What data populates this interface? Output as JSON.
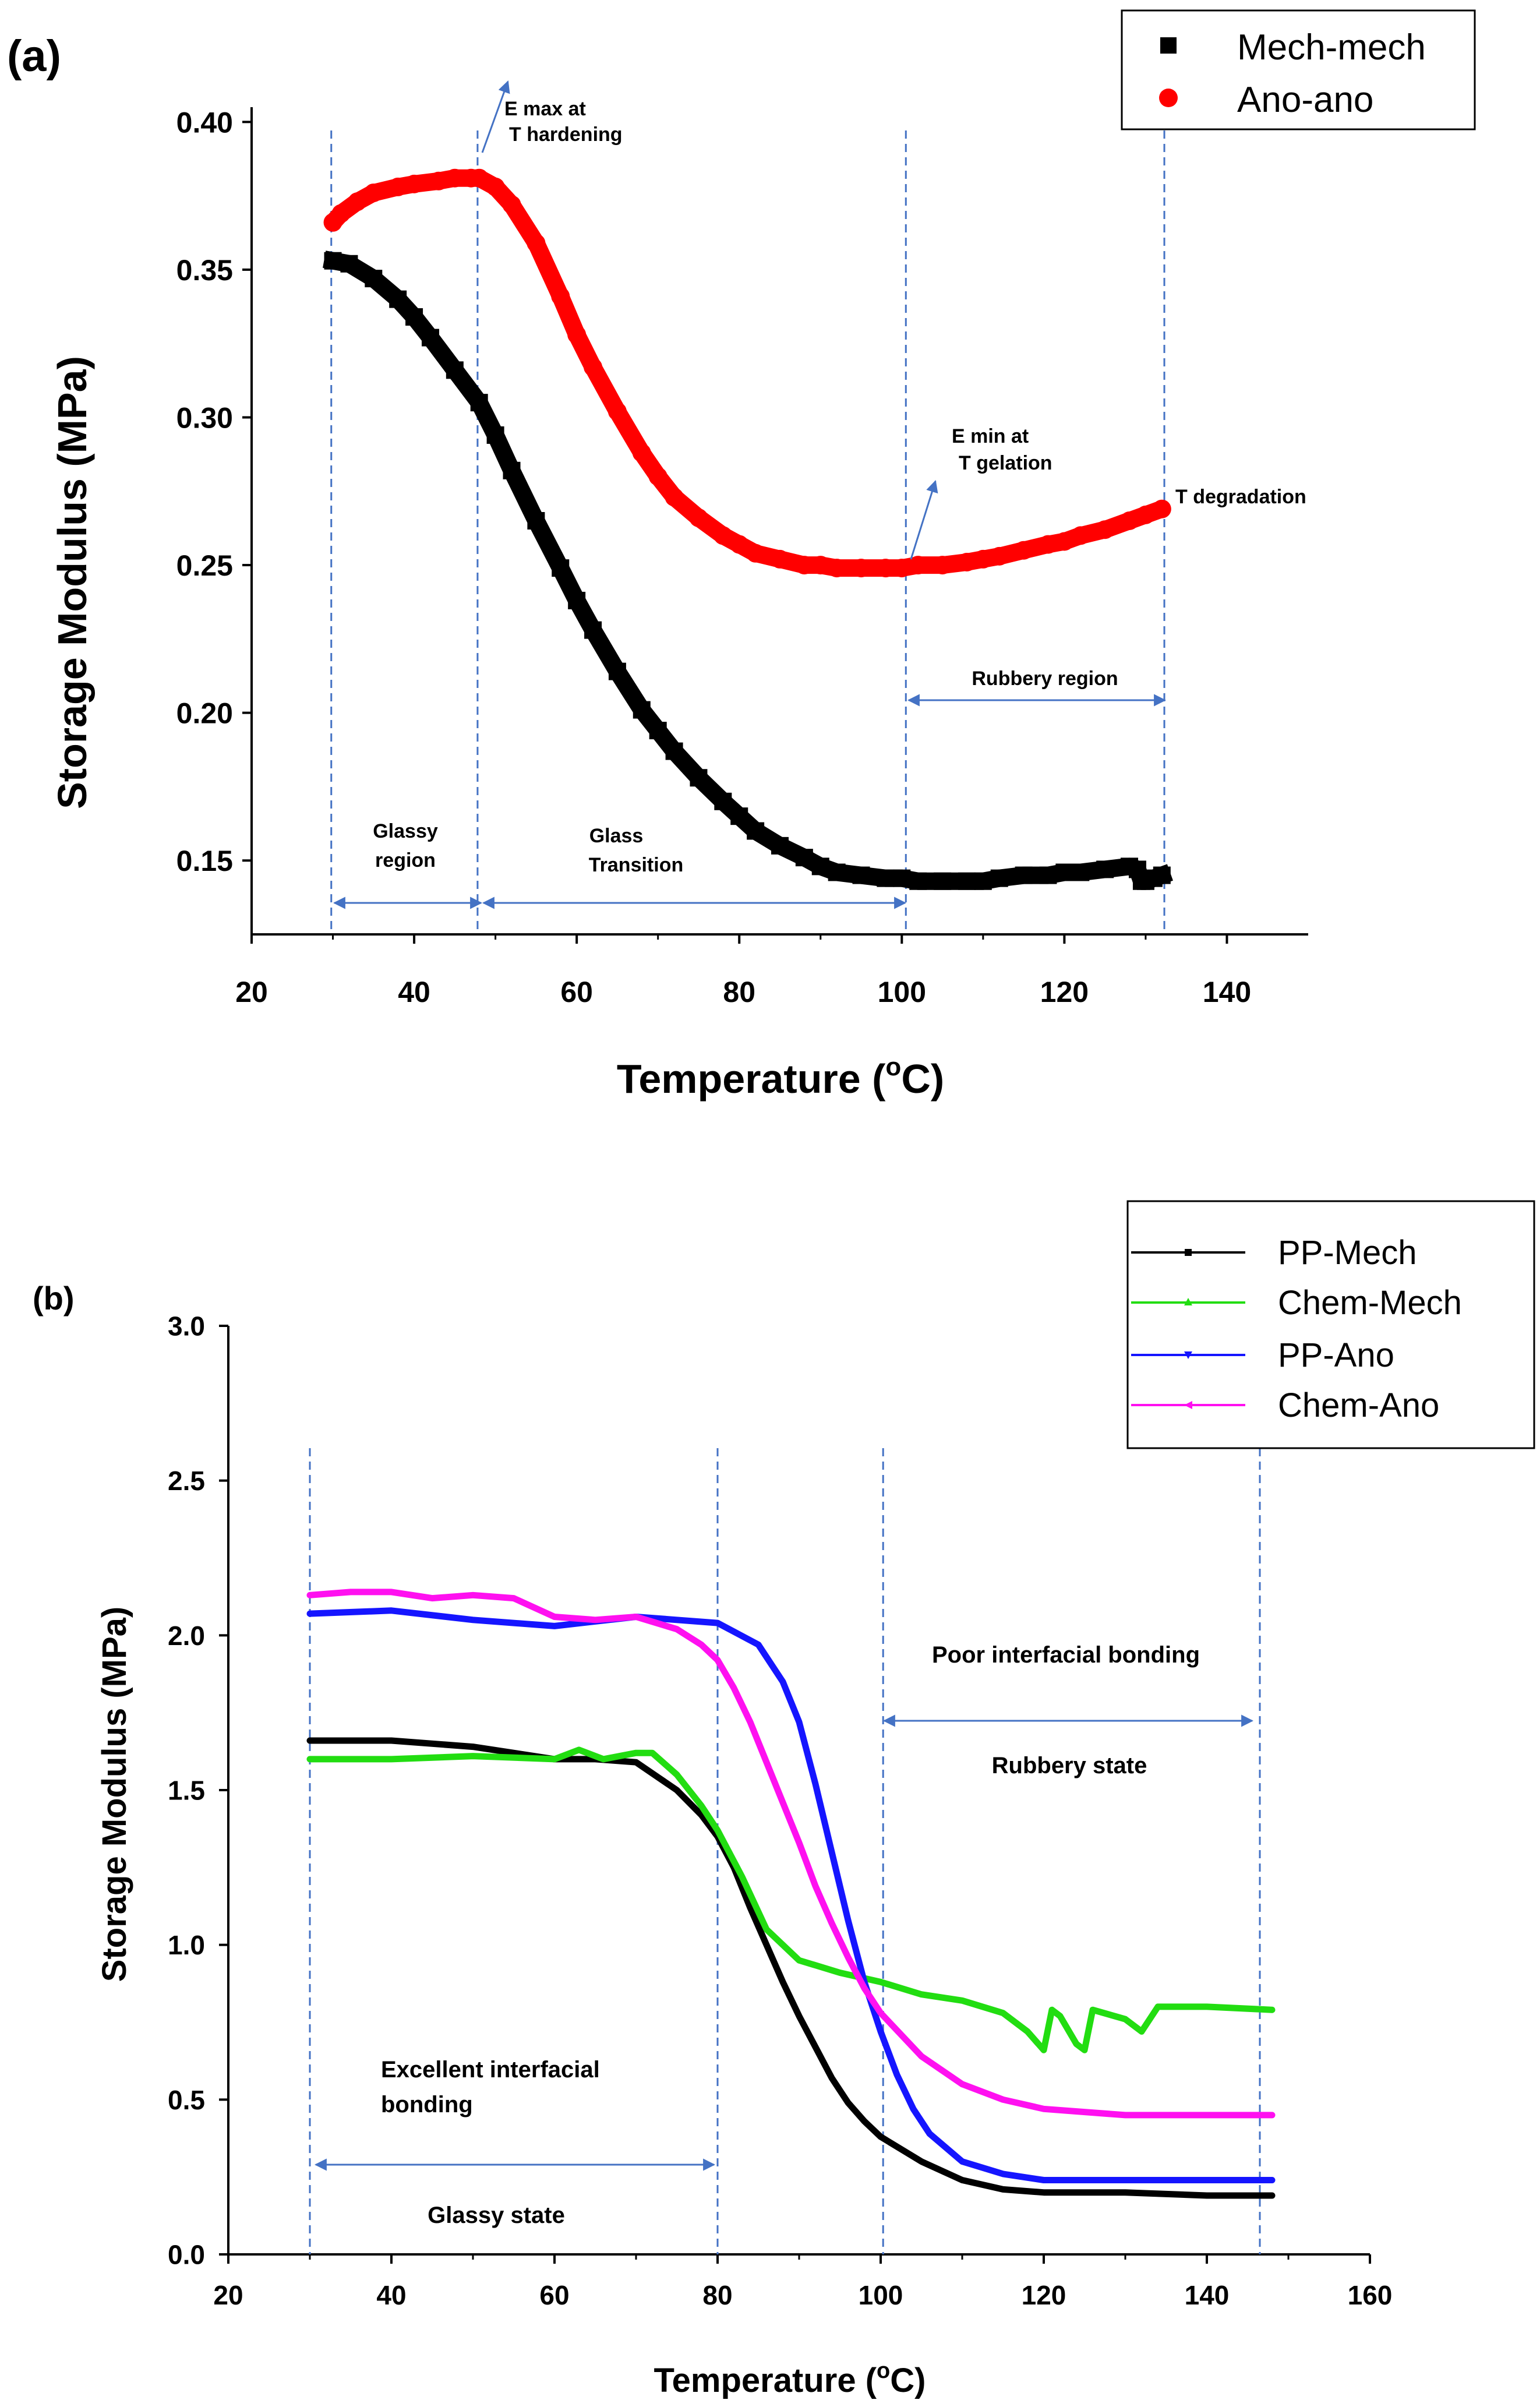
{
  "chart_data": [
    {
      "type": "scatter",
      "panel_label": "(a)",
      "xlabel_prefix": "Temperature (",
      "xlabel_sup": "o",
      "xlabel_suffix": "C)",
      "ylabel": "Storage Modulus (MPa)",
      "xlim": [
        20,
        150
      ],
      "ylim": [
        0.125,
        0.405
      ],
      "xticks": [
        "20",
        "40",
        "60",
        "80",
        "100",
        "120",
        "140"
      ],
      "yticks": [
        "0.40",
        "0.35",
        "0.30",
        "0.25",
        "0.20",
        "0.15"
      ],
      "legend_position": "top-right",
      "series": [
        {
          "name": "Mech-mech",
          "color": "#000000",
          "marker": "square",
          "x": [
            30,
            32,
            35,
            38,
            40,
            42,
            45,
            48,
            50,
            52,
            55,
            58,
            60,
            62,
            65,
            68,
            70,
            72,
            75,
            78,
            80,
            82,
            85,
            88,
            90,
            92,
            95,
            98,
            100,
            102,
            105,
            108,
            110,
            112,
            115,
            118,
            120,
            122,
            125,
            128,
            129,
            129.5,
            130,
            131,
            132
          ],
          "y": [
            0.353,
            0.352,
            0.347,
            0.34,
            0.334,
            0.327,
            0.316,
            0.305,
            0.294,
            0.282,
            0.265,
            0.249,
            0.238,
            0.228,
            0.214,
            0.201,
            0.194,
            0.187,
            0.178,
            0.17,
            0.165,
            0.16,
            0.155,
            0.151,
            0.148,
            0.146,
            0.145,
            0.144,
            0.144,
            0.143,
            0.143,
            0.143,
            0.143,
            0.144,
            0.145,
            0.145,
            0.146,
            0.146,
            0.147,
            0.148,
            0.147,
            0.143,
            0.143,
            0.144,
            0.145
          ]
        },
        {
          "name": "Ano-ano",
          "color": "#ff0000",
          "marker": "circle",
          "x": [
            30,
            31,
            33,
            35,
            38,
            40,
            43,
            45,
            47,
            48,
            50,
            52,
            55,
            58,
            60,
            62,
            65,
            68,
            70,
            72,
            75,
            78,
            80,
            82,
            85,
            88,
            90,
            92,
            95,
            98,
            100,
            102,
            105,
            108,
            110,
            112,
            115,
            118,
            120,
            122,
            125,
            128,
            130,
            132
          ],
          "y": [
            0.366,
            0.369,
            0.373,
            0.376,
            0.378,
            0.379,
            0.38,
            0.381,
            0.381,
            0.381,
            0.378,
            0.372,
            0.359,
            0.341,
            0.328,
            0.317,
            0.302,
            0.288,
            0.28,
            0.273,
            0.266,
            0.26,
            0.257,
            0.254,
            0.252,
            0.25,
            0.25,
            0.249,
            0.249,
            0.249,
            0.249,
            0.25,
            0.25,
            0.251,
            0.252,
            0.253,
            0.255,
            0.257,
            0.258,
            0.26,
            0.262,
            0.265,
            0.267,
            0.269
          ]
        }
      ],
      "vlines": [
        29.8,
        47.8,
        100.5,
        132.3
      ],
      "annotations": {
        "emax_l1": "E max at",
        "emax_l2": "T hardening",
        "emin_l1": "E min at",
        "emin_l2": "T gelation",
        "tdeg": "T degradation",
        "rubbery": "Rubbery region",
        "glassy_l1": "Glassy",
        "glassy_l2": "region",
        "transition_l1": "Glass",
        "transition_l2": "Transition"
      }
    },
    {
      "type": "line",
      "panel_label": "(b)",
      "xlabel_prefix": "Temperature (",
      "xlabel_sup": "o",
      "xlabel_suffix": "C)",
      "ylabel": "Storage Modulus (MPa)",
      "xlim": [
        20,
        160
      ],
      "ylim": [
        0.0,
        3.0
      ],
      "xticks": [
        "20",
        "40",
        "60",
        "80",
        "100",
        "120",
        "140",
        "160"
      ],
      "yticks": [
        "3.0",
        "2.5",
        "2.0",
        "1.5",
        "1.0",
        "0.5",
        "0.0"
      ],
      "legend_position": "top-right",
      "series": [
        {
          "name": "PP-Mech",
          "color": "#000000",
          "x": [
            30,
            40,
            50,
            60,
            65,
            70,
            75,
            78,
            80,
            82,
            84,
            86,
            88,
            90,
            92,
            94,
            96,
            98,
            100,
            105,
            110,
            115,
            120,
            130,
            140,
            148
          ],
          "y": [
            1.66,
            1.66,
            1.64,
            1.6,
            1.6,
            1.59,
            1.5,
            1.42,
            1.35,
            1.25,
            1.12,
            1.0,
            0.88,
            0.77,
            0.67,
            0.57,
            0.49,
            0.43,
            0.38,
            0.3,
            0.24,
            0.21,
            0.2,
            0.2,
            0.19,
            0.19
          ]
        },
        {
          "name": "Chem-Mech",
          "color": "#22dd11",
          "x": [
            30,
            40,
            50,
            60,
            63,
            66,
            70,
            72,
            75,
            78,
            80,
            83,
            86,
            90,
            95,
            100,
            105,
            110,
            115,
            118,
            120,
            121,
            122,
            124,
            125,
            126,
            130,
            132,
            134,
            140,
            148
          ],
          "y": [
            1.6,
            1.6,
            1.61,
            1.6,
            1.63,
            1.6,
            1.62,
            1.62,
            1.55,
            1.45,
            1.37,
            1.22,
            1.05,
            0.95,
            0.91,
            0.88,
            0.84,
            0.82,
            0.78,
            0.72,
            0.66,
            0.79,
            0.77,
            0.68,
            0.66,
            0.79,
            0.76,
            0.72,
            0.8,
            0.8,
            0.79
          ]
        },
        {
          "name": "PP-Ano",
          "color": "#1515ff",
          "x": [
            30,
            40,
            50,
            60,
            70,
            75,
            80,
            85,
            88,
            90,
            92,
            94,
            96,
            98,
            100,
            102,
            104,
            106,
            110,
            115,
            120,
            130,
            140,
            148
          ],
          "y": [
            2.07,
            2.08,
            2.05,
            2.03,
            2.06,
            2.05,
            2.04,
            1.97,
            1.85,
            1.72,
            1.52,
            1.3,
            1.08,
            0.88,
            0.72,
            0.58,
            0.47,
            0.39,
            0.3,
            0.26,
            0.24,
            0.24,
            0.24,
            0.24
          ]
        },
        {
          "name": "Chem-Ano",
          "color": "#ff10f0",
          "x": [
            30,
            35,
            40,
            45,
            50,
            55,
            60,
            65,
            70,
            75,
            78,
            80,
            82,
            84,
            86,
            88,
            90,
            92,
            94,
            96,
            98,
            100,
            105,
            110,
            115,
            120,
            130,
            140,
            148
          ],
          "y": [
            2.13,
            2.14,
            2.14,
            2.12,
            2.13,
            2.12,
            2.06,
            2.05,
            2.06,
            2.02,
            1.97,
            1.92,
            1.83,
            1.72,
            1.59,
            1.46,
            1.33,
            1.19,
            1.07,
            0.96,
            0.86,
            0.78,
            0.64,
            0.55,
            0.5,
            0.47,
            0.45,
            0.45,
            0.45
          ]
        }
      ],
      "vlines": [
        30,
        80,
        100.3,
        146.5
      ],
      "annotations": {
        "poor": "Poor interfacial bonding",
        "rubbery": "Rubbery state",
        "excellent_l1": "Excellent interfacial",
        "excellent_l2": "bonding",
        "glassy": "Glassy state"
      }
    }
  ]
}
